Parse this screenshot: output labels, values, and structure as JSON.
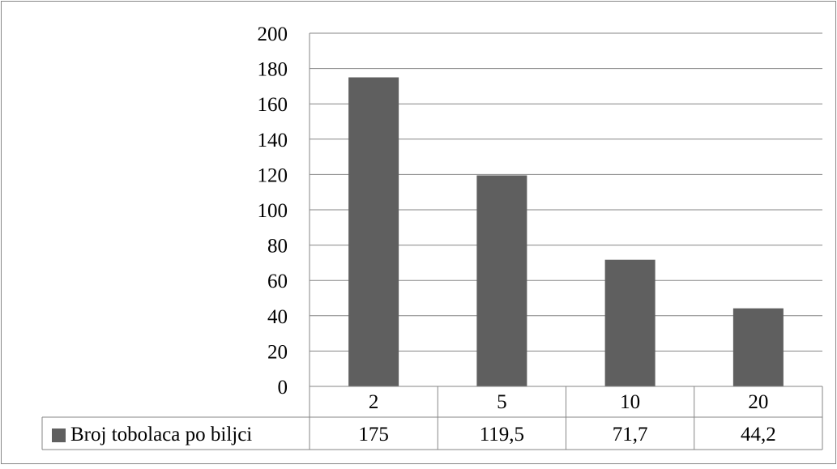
{
  "chart_data": {
    "type": "bar",
    "categories": [
      "2",
      "5",
      "10",
      "20"
    ],
    "series": [
      {
        "name": "Broj tobolaca po biljci",
        "values": [
          175,
          119.5,
          71.7,
          44.2
        ]
      }
    ],
    "table_values": [
      "175",
      "119,5",
      "71,7",
      "44,2"
    ],
    "ylim": [
      0,
      200
    ],
    "yticks": [
      0,
      20,
      40,
      60,
      80,
      100,
      120,
      140,
      160,
      180,
      200
    ],
    "grid": true,
    "legend": "data-table",
    "colors": {
      "bar": "#5f5f5f",
      "grid": "#868686",
      "frame": "#868686"
    }
  }
}
